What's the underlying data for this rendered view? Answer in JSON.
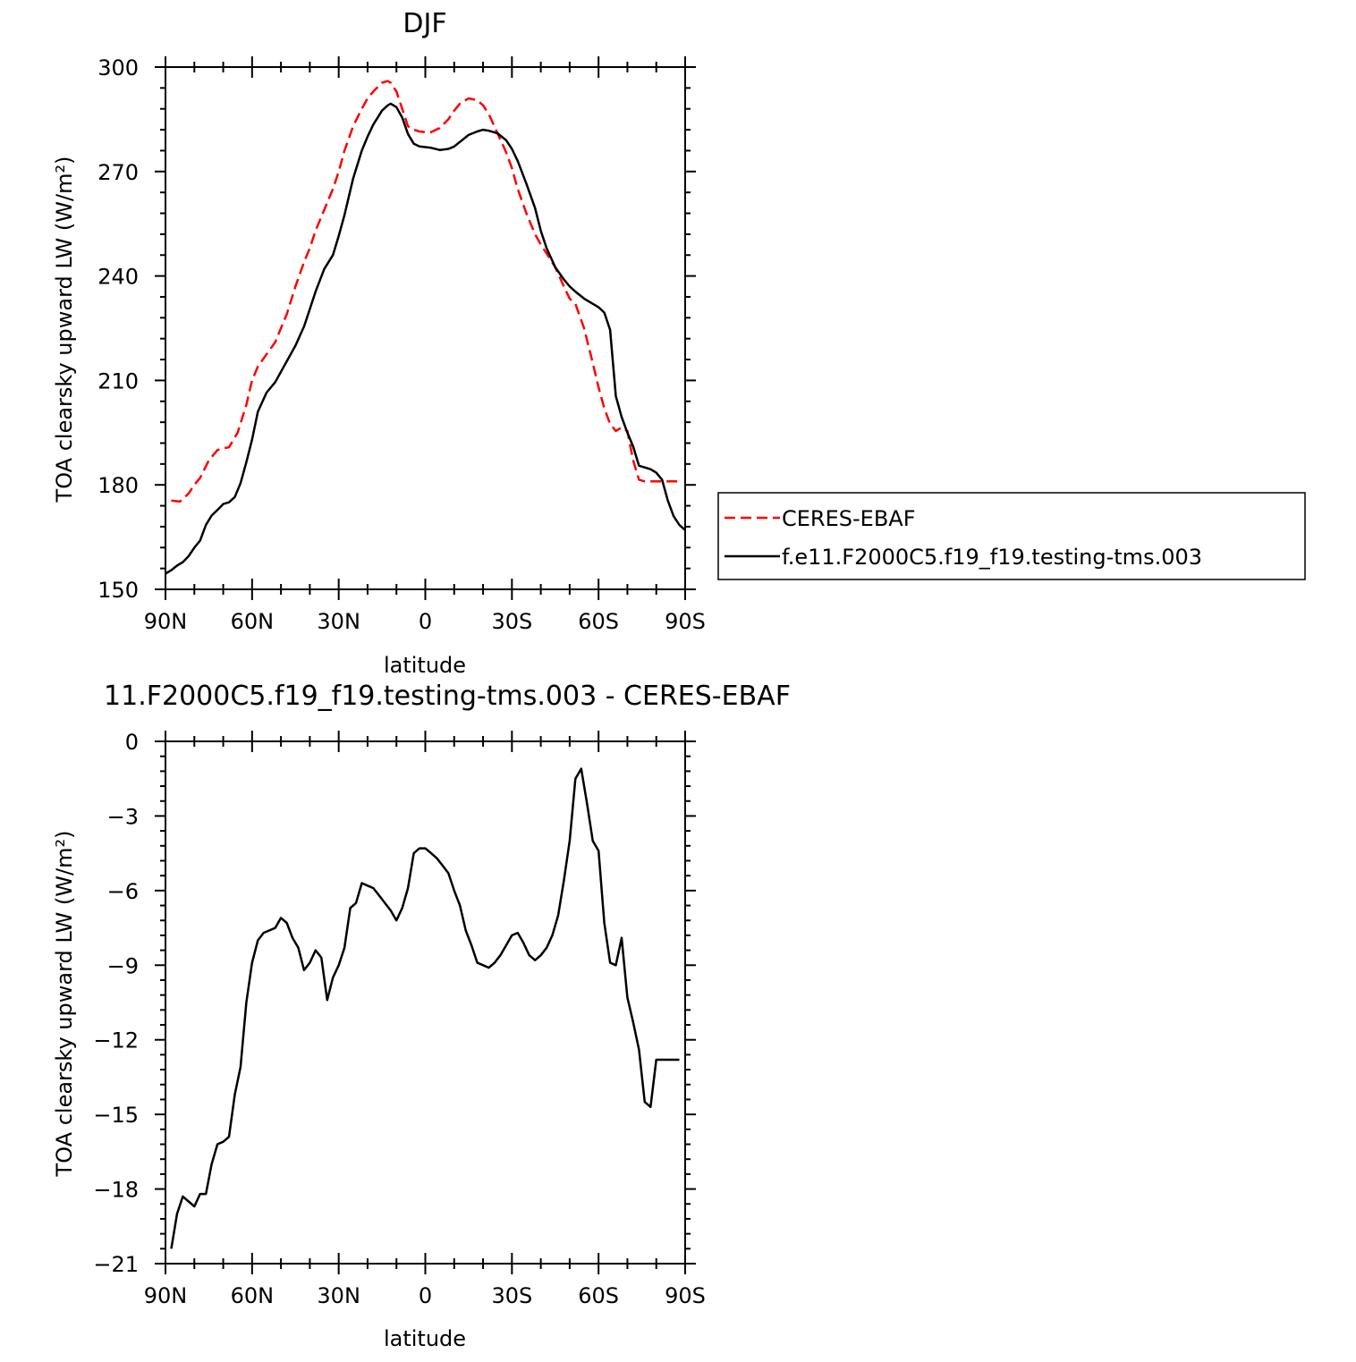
{
  "chart_data": [
    {
      "type": "line",
      "title": "DJF",
      "xlabel": "latitude",
      "ylabel": "TOA clearsky upward LW (W/m²)",
      "x_ticks": [
        "90N",
        "60N",
        "30N",
        "0",
        "30S",
        "60S",
        "90S"
      ],
      "x_tick_values": [
        90,
        60,
        30,
        0,
        -30,
        -60,
        -90
      ],
      "xlim": [
        90,
        -90
      ],
      "ylim": [
        150,
        300
      ],
      "y_ticks": [
        150,
        180,
        210,
        240,
        270,
        300
      ],
      "legend_placement": "right",
      "series": [
        {
          "name": "CERES-EBAF",
          "color": "#ff0000",
          "dashed": true,
          "x": [
            88,
            85,
            82,
            80,
            78,
            75,
            72,
            70,
            68,
            65,
            62,
            60,
            58,
            55,
            52,
            50,
            48,
            45,
            42,
            40,
            38,
            35,
            32,
            30,
            28,
            25,
            22,
            20,
            18,
            15,
            13,
            12,
            10,
            8,
            6,
            4,
            2,
            0,
            -2,
            -5,
            -8,
            -10,
            -12,
            -15,
            -18,
            -20,
            -22,
            -25,
            -28,
            -30,
            -32,
            -35,
            -38,
            -40,
            -42,
            -45,
            -48,
            -50,
            -52,
            -55,
            -58,
            -60,
            -62,
            -64,
            -66,
            -68,
            -70,
            -72,
            -74,
            -76,
            -78,
            -80,
            -82,
            -84,
            -86,
            -88
          ],
          "values": [
            175.5,
            175.2,
            177.5,
            180,
            182,
            187,
            190,
            190.5,
            190.8,
            195,
            203,
            210,
            214,
            217.5,
            221,
            225,
            229,
            237,
            244,
            248,
            253,
            259,
            265,
            270,
            276,
            283,
            288,
            291,
            293,
            295.5,
            296,
            295.5,
            293,
            288,
            283,
            282,
            281.5,
            281.3,
            281.3,
            282.5,
            285,
            287.5,
            289.5,
            291,
            290.5,
            289,
            286.5,
            281,
            275.5,
            271,
            265,
            258,
            252,
            249,
            246.5,
            242.5,
            237,
            233.5,
            232,
            225,
            215,
            208,
            202,
            197.5,
            195.5,
            196.5,
            195.5,
            187,
            181.5,
            181,
            181,
            181,
            181,
            181,
            181,
            181
          ]
        },
        {
          "name": "f.e11.F2000C5.f19_f19.testing-tms.003",
          "color": "#000000",
          "dashed": false,
          "x": [
            90,
            88,
            86,
            84,
            82,
            80,
            78,
            76,
            74,
            72,
            70,
            68,
            66,
            64,
            62,
            60,
            58,
            55,
            52,
            50,
            48,
            45,
            42,
            40,
            38,
            35,
            32,
            30,
            28,
            25,
            22,
            20,
            18,
            15,
            13,
            12,
            10,
            8,
            6,
            4,
            2,
            0,
            -2,
            -5,
            -8,
            -10,
            -12,
            -15,
            -18,
            -20,
            -22,
            -25,
            -28,
            -30,
            -32,
            -35,
            -38,
            -40,
            -42,
            -45,
            -48,
            -50,
            -52,
            -55,
            -58,
            -60,
            -62,
            -64,
            -65,
            -66,
            -68,
            -70,
            -72,
            -74,
            -76,
            -78,
            -80,
            -82,
            -84,
            -86,
            -88,
            -90
          ],
          "values": [
            154.5,
            155.5,
            156.8,
            157.8,
            159.5,
            162,
            164,
            168.5,
            171.2,
            172.8,
            174.5,
            175,
            176.5,
            180.5,
            186.5,
            193,
            201,
            206.5,
            209.5,
            212.5,
            215.5,
            220,
            225.5,
            230.5,
            235.5,
            242,
            246,
            251.5,
            257.5,
            268,
            276,
            280,
            283.5,
            287.5,
            289,
            289.5,
            288.5,
            285.5,
            280.8,
            278,
            277.2,
            277,
            276.8,
            276.2,
            276.5,
            277.2,
            278.5,
            280.5,
            281.5,
            282,
            281.7,
            281,
            279,
            276.5,
            273,
            266.5,
            259.5,
            253,
            248,
            242.5,
            239,
            237,
            235.5,
            233.5,
            232,
            231,
            229.5,
            224.5,
            215,
            205.5,
            199.5,
            195,
            191,
            185.5,
            185,
            184.5,
            183.5,
            181.5,
            175.5,
            171,
            168.5,
            167
          ]
        }
      ]
    },
    {
      "type": "line",
      "title": "11.F2000C5.f19_f19.testing-tms.003 - CERES-EBAF",
      "xlabel": "latitude",
      "ylabel": "TOA clearsky upward LW (W/m²)",
      "x_ticks": [
        "90N",
        "60N",
        "30N",
        "0",
        "30S",
        "60S",
        "90S"
      ],
      "x_tick_values": [
        90,
        60,
        30,
        0,
        -30,
        -60,
        -90
      ],
      "xlim": [
        90,
        -90
      ],
      "ylim": [
        -21,
        0
      ],
      "y_ticks": [
        0,
        -3,
        -6,
        -9,
        -12,
        -15,
        -18,
        -21
      ],
      "series": [
        {
          "color": "#000000",
          "dashed": false,
          "x": [
            88,
            86,
            84,
            82,
            80,
            78,
            76,
            74,
            72,
            70,
            68,
            66,
            64,
            62,
            60,
            58,
            56,
            54,
            52,
            50,
            48,
            46,
            44,
            42,
            40,
            38,
            36,
            34,
            32,
            30,
            28,
            26,
            24,
            22,
            20,
            18,
            16,
            14,
            12,
            10,
            8,
            6,
            4,
            2,
            0,
            -2,
            -4,
            -6,
            -8,
            -10,
            -12,
            -14,
            -16,
            -18,
            -20,
            -22,
            -24,
            -26,
            -28,
            -30,
            -32,
            -34,
            -36,
            -38,
            -40,
            -42,
            -44,
            -46,
            -48,
            -50,
            -52,
            -54,
            -56,
            -58,
            -60,
            -62,
            -64,
            -66,
            -68,
            -70,
            -72,
            -74,
            -76,
            -78,
            -80,
            -82,
            -84,
            -86,
            -88
          ],
          "values": [
            -20.4,
            -19,
            -18.3,
            -18.5,
            -18.7,
            -18.2,
            -18.2,
            -17,
            -16.2,
            -16.1,
            -15.9,
            -14.2,
            -13.1,
            -10.5,
            -8.9,
            -8,
            -7.7,
            -7.6,
            -7.5,
            -7.1,
            -7.3,
            -7.9,
            -8.3,
            -9.2,
            -8.9,
            -8.4,
            -8.7,
            -10.4,
            -9.5,
            -9,
            -8.3,
            -6.7,
            -6.5,
            -5.7,
            -5.8,
            -5.9,
            -6.2,
            -6.5,
            -6.8,
            -7.2,
            -6.7,
            -5.9,
            -4.5,
            -4.3,
            -4.3,
            -4.5,
            -4.7,
            -5,
            -5.3,
            -6,
            -6.6,
            -7.6,
            -8.2,
            -8.9,
            -9,
            -9.1,
            -8.9,
            -8.6,
            -8.2,
            -7.8,
            -7.7,
            -8.1,
            -8.6,
            -8.8,
            -8.6,
            -8.3,
            -7.8,
            -7,
            -5.6,
            -4,
            -1.5,
            -1.1,
            -2.5,
            -4,
            -4.4,
            -7.3,
            -8.9,
            -9,
            -7.9,
            -10.3,
            -11.3,
            -12.4,
            -14.5,
            -14.7,
            -12.8,
            -12.8,
            -12.8,
            -12.8,
            -12.8
          ]
        }
      ]
    }
  ]
}
